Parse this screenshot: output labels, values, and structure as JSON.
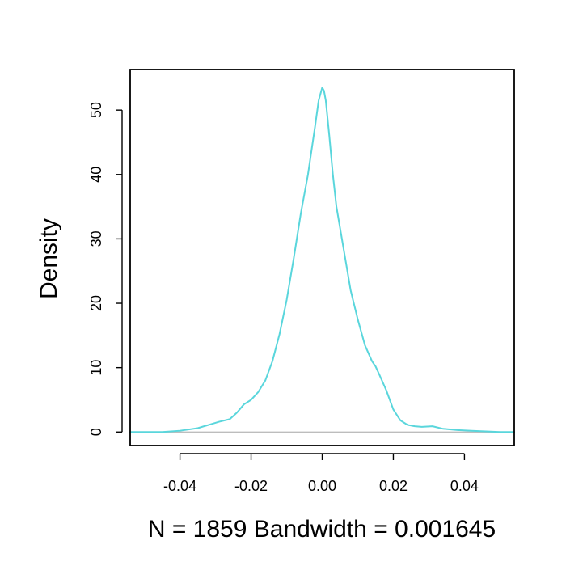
{
  "chart_data": {
    "type": "line",
    "title": "",
    "xlabel": "N = 1859   Bandwidth = 0.001645",
    "ylabel": "Density",
    "xlim": [
      -0.054,
      0.054
    ],
    "ylim": [
      -2.1,
      56.3
    ],
    "x_ticks": [
      -0.04,
      -0.02,
      0.0,
      0.02,
      0.04
    ],
    "x_tick_labels": [
      "-0.04",
      "-0.02",
      "0.00",
      "0.02",
      "0.04"
    ],
    "y_ticks": [
      0,
      10,
      20,
      30,
      40,
      50
    ],
    "y_tick_labels": [
      "0",
      "10",
      "20",
      "30",
      "40",
      "50"
    ],
    "grid": false,
    "baseline": 0,
    "colors": {
      "line": "#5ad6dc",
      "baseline": "#bdbdbd",
      "frame": "#000000"
    },
    "series": [
      {
        "x": [
          -0.054,
          -0.045,
          -0.04,
          -0.035,
          -0.032,
          -0.029,
          -0.026,
          -0.024,
          -0.022,
          -0.02,
          -0.018,
          -0.016,
          -0.014,
          -0.012,
          -0.01,
          -0.008,
          -0.006,
          -0.004,
          -0.002,
          -0.001,
          0.0,
          0.0005,
          0.001,
          0.002,
          0.003,
          0.004,
          0.006,
          0.008,
          0.01,
          0.012,
          0.014,
          0.015,
          0.016,
          0.018,
          0.02,
          0.022,
          0.024,
          0.026,
          0.028,
          0.031,
          0.034,
          0.038,
          0.042,
          0.046,
          0.05,
          0.054
        ],
        "y": [
          0.0,
          0.0,
          0.2,
          0.6,
          1.1,
          1.6,
          2.0,
          3.0,
          4.3,
          5.0,
          6.2,
          8.0,
          11.0,
          15.2,
          20.5,
          27.0,
          34.0,
          40.0,
          47.5,
          51.5,
          53.5,
          53.0,
          51.5,
          46.0,
          40.0,
          35.0,
          28.5,
          22.0,
          17.5,
          13.5,
          11.0,
          10.2,
          9.0,
          6.5,
          3.5,
          1.8,
          1.1,
          0.9,
          0.8,
          0.9,
          0.5,
          0.3,
          0.2,
          0.1,
          0.0,
          0.0
        ]
      }
    ]
  }
}
